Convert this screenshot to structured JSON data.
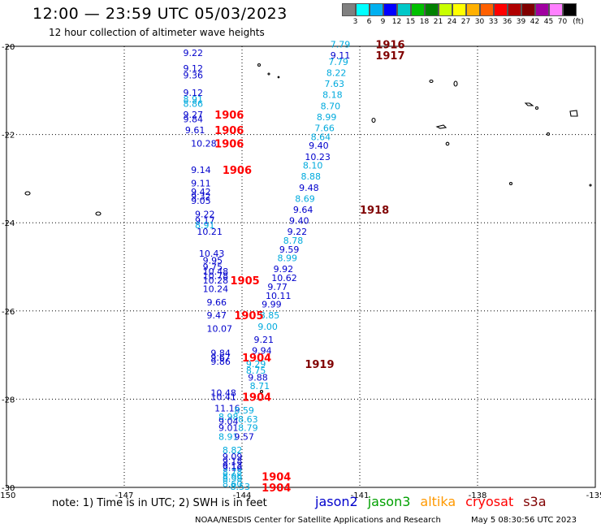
{
  "header": {
    "title": "12:00 — 23:59 UTC 05/03/2023",
    "subtitle": "12 hour collection of altimeter wave heights"
  },
  "color_scale": {
    "unit": "(ft)",
    "labels": [
      "3",
      "6",
      "9",
      "12",
      "15",
      "18",
      "21",
      "24",
      "27",
      "30",
      "33",
      "36",
      "39",
      "42",
      "45",
      "70"
    ],
    "colors": [
      "#808080",
      "#00ffff",
      "#00b0f0",
      "#0000ff",
      "#00c8c8",
      "#00c000",
      "#008000",
      "#c8ff00",
      "#ffff00",
      "#ffb000",
      "#ff6000",
      "#ff0000",
      "#b00000",
      "#800000",
      "#a000a0",
      "#ff80ff",
      "#000000"
    ]
  },
  "footer": {
    "note": "note:  1) Time is in UTC;  2) SWH is in feet",
    "satellites": [
      {
        "name": "jason2",
        "color": "#0000cc"
      },
      {
        "name": "jason3",
        "color": "#00a000"
      },
      {
        "name": "altika",
        "color": "#ff9900"
      },
      {
        "name": "cryosat",
        "color": "#ff0000"
      },
      {
        "name": "s3a",
        "color": "#800000"
      }
    ],
    "credit": "NOAA/NESDIS Center for Satellite Applications and Research",
    "timestamp": "May  5 08:30:56 UTC 2023"
  },
  "chart_data": {
    "type": "scatter",
    "title": "12:00 — 23:59 UTC 05/03/2023",
    "xlabel": "",
    "ylabel": "",
    "xlim": [
      -150,
      -135
    ],
    "ylim": [
      -30,
      -20
    ],
    "x_ticks": [
      "-150",
      "-147",
      "-144",
      "-141",
      "-138",
      "-135"
    ],
    "y_ticks": [
      "-20",
      "-22",
      "-24",
      "-26",
      "-28",
      "-30"
    ],
    "grid": true,
    "points": [
      {
        "lon": -145.5,
        "lat": -20.15,
        "label": "9.22",
        "color": "#0000cc"
      },
      {
        "lon": -145.5,
        "lat": -20.5,
        "label": "9.12",
        "color": "#0000cc"
      },
      {
        "lon": -145.5,
        "lat": -20.65,
        "label": "9.36",
        "color": "#0000cc"
      },
      {
        "lon": -145.5,
        "lat": -21.05,
        "label": "9.12",
        "color": "#0000cc"
      },
      {
        "lon": -145.5,
        "lat": -21.2,
        "label": "8.91",
        "color": "#00aadd"
      },
      {
        "lon": -145.5,
        "lat": -21.3,
        "label": "8.86",
        "color": "#00aadd"
      },
      {
        "lon": -145.5,
        "lat": -21.55,
        "label": "9.27",
        "color": "#0000cc"
      },
      {
        "lon": -145.5,
        "lat": -21.65,
        "label": "9.84",
        "color": "#0000cc"
      },
      {
        "lon": -145.45,
        "lat": -21.9,
        "label": "9.61",
        "color": "#0000cc"
      },
      {
        "lon": -145.3,
        "lat": -22.2,
        "label": "10.28",
        "color": "#0000cc"
      },
      {
        "lon": -145.3,
        "lat": -22.8,
        "label": "9.14",
        "color": "#0000cc"
      },
      {
        "lon": -145.3,
        "lat": -23.1,
        "label": "9.11",
        "color": "#0000cc"
      },
      {
        "lon": -145.3,
        "lat": -23.3,
        "label": "9.42",
        "color": "#0000cc"
      },
      {
        "lon": -145.3,
        "lat": -23.4,
        "label": "9.32",
        "color": "#0000cc"
      },
      {
        "lon": -145.3,
        "lat": -23.5,
        "label": "9.05",
        "color": "#0000cc"
      },
      {
        "lon": -145.2,
        "lat": -23.8,
        "label": "9.22",
        "color": "#0000cc"
      },
      {
        "lon": -145.2,
        "lat": -23.95,
        "label": "9.17",
        "color": "#0000cc"
      },
      {
        "lon": -145.2,
        "lat": -24.05,
        "label": "8.91",
        "color": "#00aadd"
      },
      {
        "lon": -145.15,
        "lat": -24.2,
        "label": "10.21",
        "color": "#0000cc"
      },
      {
        "lon": -145.1,
        "lat": -24.7,
        "label": "10.43",
        "color": "#0000cc"
      },
      {
        "lon": -145.0,
        "lat": -24.85,
        "label": "9.95",
        "color": "#0000cc"
      },
      {
        "lon": -145.0,
        "lat": -25.0,
        "label": "9.75",
        "color": "#0000cc"
      },
      {
        "lon": -145.0,
        "lat": -25.1,
        "label": "10.48",
        "color": "#0000cc"
      },
      {
        "lon": -145.0,
        "lat": -25.2,
        "label": "10.78",
        "color": "#0000cc"
      },
      {
        "lon": -145.0,
        "lat": -25.3,
        "label": "10.28",
        "color": "#0000cc"
      },
      {
        "lon": -145.0,
        "lat": -25.5,
        "label": "10.24",
        "color": "#0000cc"
      },
      {
        "lon": -144.9,
        "lat": -25.8,
        "label": "9.66",
        "color": "#0000cc"
      },
      {
        "lon": -144.9,
        "lat": -26.1,
        "label": "9.47",
        "color": "#0000cc"
      },
      {
        "lon": -144.9,
        "lat": -26.4,
        "label": "10.07",
        "color": "#0000cc"
      },
      {
        "lon": -144.8,
        "lat": -26.95,
        "label": "9.84",
        "color": "#0000cc"
      },
      {
        "lon": -144.8,
        "lat": -27.05,
        "label": "9.67",
        "color": "#0000cc"
      },
      {
        "lon": -144.8,
        "lat": -27.15,
        "label": "9.86",
        "color": "#0000cc"
      },
      {
        "lon": -144.8,
        "lat": -27.85,
        "label": "10.48",
        "color": "#0000cc"
      },
      {
        "lon": -144.8,
        "lat": -27.95,
        "label": "10.41",
        "color": "#0000cc"
      },
      {
        "lon": -144.7,
        "lat": -28.2,
        "label": "11.16",
        "color": "#0000cc"
      },
      {
        "lon": -144.6,
        "lat": -28.4,
        "label": "8.98",
        "color": "#00aadd"
      },
      {
        "lon": -144.6,
        "lat": -28.5,
        "label": "9.04",
        "color": "#0000cc"
      },
      {
        "lon": -144.6,
        "lat": -28.65,
        "label": "9.01",
        "color": "#0000cc"
      },
      {
        "lon": -144.6,
        "lat": -28.85,
        "label": "8.91",
        "color": "#00aadd"
      },
      {
        "lon": -144.5,
        "lat": -29.15,
        "label": "8.82",
        "color": "#00aadd"
      },
      {
        "lon": -144.5,
        "lat": -29.3,
        "label": "9.09",
        "color": "#0000cc"
      },
      {
        "lon": -144.5,
        "lat": -29.4,
        "label": "9.18",
        "color": "#0000cc"
      },
      {
        "lon": -144.5,
        "lat": -29.5,
        "label": "9.13",
        "color": "#0000cc"
      },
      {
        "lon": -144.5,
        "lat": -29.55,
        "label": "9.16",
        "color": "#0000cc"
      },
      {
        "lon": -144.5,
        "lat": -29.65,
        "label": "8.78",
        "color": "#00aadd"
      },
      {
        "lon": -144.5,
        "lat": -29.75,
        "label": "8.96",
        "color": "#00aadd"
      },
      {
        "lon": -144.5,
        "lat": -29.8,
        "label": "8.98",
        "color": "#00aadd"
      },
      {
        "lon": -144.5,
        "lat": -29.92,
        "label": "8.60",
        "color": "#00aadd"
      },
      {
        "lon": -144.3,
        "lat": -29.98,
        "label": "8.53",
        "color": "#00aadd"
      },
      {
        "lon": -144.2,
        "lat": -28.25,
        "label": "8.59",
        "color": "#00aadd"
      },
      {
        "lon": -144.1,
        "lat": -28.45,
        "label": "8.63",
        "color": "#00aadd"
      },
      {
        "lon": -144.1,
        "lat": -28.65,
        "label": "8.79",
        "color": "#00aadd"
      },
      {
        "lon": -144.2,
        "lat": -28.85,
        "label": "9.57",
        "color": "#0000cc"
      },
      {
        "lon": -143.9,
        "lat": -27.35,
        "label": "8.75",
        "color": "#00aadd"
      },
      {
        "lon": -143.9,
        "lat": -27.2,
        "label": "9.29",
        "color": "#00aadd"
      },
      {
        "lon": -143.85,
        "lat": -27.5,
        "label": "9.88",
        "color": "#0000cc"
      },
      {
        "lon": -143.8,
        "lat": -27.7,
        "label": "8.71",
        "color": "#00aadd"
      },
      {
        "lon": -143.75,
        "lat": -26.9,
        "label": "9.94",
        "color": "#0000cc"
      },
      {
        "lon": -143.7,
        "lat": -26.65,
        "label": "9.21",
        "color": "#0000cc"
      },
      {
        "lon": -143.6,
        "lat": -26.35,
        "label": "9.00",
        "color": "#00aadd"
      },
      {
        "lon": -143.55,
        "lat": -26.1,
        "label": "8.85",
        "color": "#00aadd"
      },
      {
        "lon": -143.5,
        "lat": -25.85,
        "label": "9.99",
        "color": "#0000cc"
      },
      {
        "lon": -143.4,
        "lat": -25.65,
        "label": "10.11",
        "color": "#0000cc"
      },
      {
        "lon": -143.35,
        "lat": -25.45,
        "label": "9.77",
        "color": "#0000cc"
      },
      {
        "lon": -143.25,
        "lat": -25.25,
        "label": "10.62",
        "color": "#0000cc"
      },
      {
        "lon": -143.2,
        "lat": -25.05,
        "label": "9.92",
        "color": "#0000cc"
      },
      {
        "lon": -143.1,
        "lat": -24.8,
        "label": "8.99",
        "color": "#00aadd"
      },
      {
        "lon": -143.05,
        "lat": -24.6,
        "label": "9.59",
        "color": "#0000cc"
      },
      {
        "lon": -142.95,
        "lat": -24.4,
        "label": "8.78",
        "color": "#00aadd"
      },
      {
        "lon": -142.85,
        "lat": -24.2,
        "label": "9.22",
        "color": "#0000cc"
      },
      {
        "lon": -142.8,
        "lat": -23.95,
        "label": "9.40",
        "color": "#0000cc"
      },
      {
        "lon": -142.7,
        "lat": -23.7,
        "label": "9.64",
        "color": "#0000cc"
      },
      {
        "lon": -142.65,
        "lat": -23.45,
        "label": "8.69",
        "color": "#00aadd"
      },
      {
        "lon": -142.55,
        "lat": -23.2,
        "label": "9.48",
        "color": "#0000cc"
      },
      {
        "lon": -142.5,
        "lat": -22.95,
        "label": "8.88",
        "color": "#00aadd"
      },
      {
        "lon": -142.45,
        "lat": -22.7,
        "label": "8.10",
        "color": "#00aadd"
      },
      {
        "lon": -142.4,
        "lat": -22.5,
        "label": "10.23",
        "color": "#0000cc"
      },
      {
        "lon": -142.3,
        "lat": -22.25,
        "label": "9.40",
        "color": "#0000cc"
      },
      {
        "lon": -142.25,
        "lat": -22.05,
        "label": "8.64",
        "color": "#00aadd"
      },
      {
        "lon": -142.15,
        "lat": -21.85,
        "label": "7.66",
        "color": "#00aadd"
      },
      {
        "lon": -142.1,
        "lat": -21.6,
        "label": "8.99",
        "color": "#00aadd"
      },
      {
        "lon": -142.0,
        "lat": -21.35,
        "label": "8.70",
        "color": "#00aadd"
      },
      {
        "lon": -141.95,
        "lat": -21.1,
        "label": "8.18",
        "color": "#00aadd"
      },
      {
        "lon": -141.9,
        "lat": -20.85,
        "label": "7.63",
        "color": "#00aadd"
      },
      {
        "lon": -141.85,
        "lat": -20.6,
        "label": "8.22",
        "color": "#00aadd"
      },
      {
        "lon": -141.8,
        "lat": -20.35,
        "label": "7.79",
        "color": "#00aadd"
      },
      {
        "lon": -141.75,
        "lat": -20.2,
        "label": "9.11",
        "color": "#0000cc"
      },
      {
        "lon": -141.75,
        "lat": -19.95,
        "label": "7.79",
        "color": "#00aadd"
      }
    ],
    "time_labels": [
      {
        "lon": -144.7,
        "lat": -21.55,
        "label": "1906",
        "color": "#ff0000"
      },
      {
        "lon": -144.7,
        "lat": -21.9,
        "label": "1906",
        "color": "#ff0000"
      },
      {
        "lon": -144.7,
        "lat": -22.2,
        "label": "1906",
        "color": "#ff0000"
      },
      {
        "lon": -144.5,
        "lat": -22.8,
        "label": "1906",
        "color": "#ff0000"
      },
      {
        "lon": -144.3,
        "lat": -25.3,
        "label": "1905",
        "color": "#ff0000"
      },
      {
        "lon": -144.2,
        "lat": -26.1,
        "label": "1905",
        "color": "#ff0000"
      },
      {
        "lon": -144.0,
        "lat": -27.05,
        "label": "1904",
        "color": "#ff0000"
      },
      {
        "lon": -144.0,
        "lat": -27.95,
        "label": "1904",
        "color": "#ff0000"
      },
      {
        "lon": -143.5,
        "lat": -29.75,
        "label": "1904",
        "color": "#ff0000"
      },
      {
        "lon": -143.5,
        "lat": -30.0,
        "label": "1904",
        "color": "#ff0000"
      },
      {
        "lon": -140.6,
        "lat": -19.95,
        "label": "1916",
        "color": "#800000"
      },
      {
        "lon": -140.6,
        "lat": -20.2,
        "label": "1917",
        "color": "#800000"
      },
      {
        "lon": -141.0,
        "lat": -23.7,
        "label": "1918",
        "color": "#800000"
      },
      {
        "lon": -142.4,
        "lat": -27.2,
        "label": "1919",
        "color": "#800000"
      }
    ]
  }
}
